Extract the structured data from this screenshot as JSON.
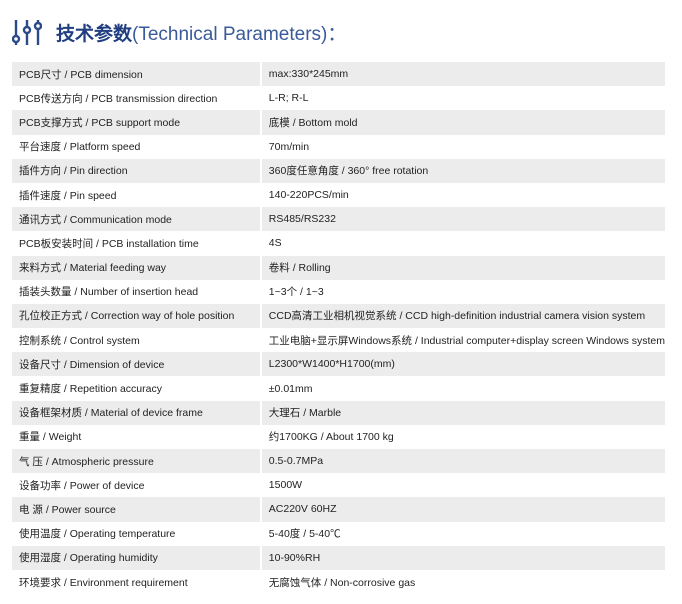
{
  "header": {
    "icon": "sliders-icon",
    "title_cn": "技术参数",
    "title_en": "(Technical Parameters)：",
    "color": "#2b4a8a"
  },
  "rows": [
    {
      "k": "PCB尺寸 / PCB dimension",
      "v": "max:330*245mm"
    },
    {
      "k": "PCB传送方向 / PCB transmission direction",
      "v": "L-R; R-L"
    },
    {
      "k": "PCB支撑方式 / PCB support mode",
      "v": "底模 / Bottom mold"
    },
    {
      "k": "平台速度 / Platform speed",
      "v": "70m/min"
    },
    {
      "k": "插件方向 / Pin direction",
      "v": "360度任意角度 / 360° free rotation"
    },
    {
      "k": "插件速度 / Pin speed",
      "v": "140-220PCS/min"
    },
    {
      "k": "通讯方式 / Communication mode",
      "v": "RS485/RS232"
    },
    {
      "k": "PCB板安装时间 / PCB installation time",
      "v": "4S"
    },
    {
      "k": "来料方式 / Material feeding way",
      "v": "卷料 / Rolling"
    },
    {
      "k": "插装头数量 /  Number of insertion head",
      "v": "1~3个 / 1~3"
    },
    {
      "k": "孔位校正方式 / Correction way of hole position",
      "v": "CCD高清工业相机视觉系统 / CCD high-definition industrial camera vision system"
    },
    {
      "k": "控制系统 / Control system",
      "v": "工业电脑+显示屏Windows系统 / Industrial computer+display screen Windows system"
    },
    {
      "k": "设备尺寸 / Dimension of device",
      "v": "L2300*W1400*H1700(mm)"
    },
    {
      "k": "重复精度 / Repetition accuracy",
      "v": "±0.01mm"
    },
    {
      "k": "设备框架材质 / Material of device frame",
      "v": "大理石 / Marble"
    },
    {
      "k": "重量 / Weight",
      "v": "约1700KG / About 1700 kg"
    },
    {
      "k": "气 压 / Atmospheric pressure",
      "v": "0.5-0.7MPa"
    },
    {
      "k": "设备功率 / Power of device",
      "v": "1500W"
    },
    {
      "k": "电 源 / Power source",
      "v": "AC220V 60HZ"
    },
    {
      "k": "使用温度 / Operating temperature",
      "v": "5-40度 / 5-40℃"
    },
    {
      "k": "使用湿度 / Operating humidity",
      "v": "10-90%RH"
    },
    {
      "k": "环境要求 / Environment requirement",
      "v": "无腐蚀气体 / Non-corrosive gas"
    }
  ]
}
